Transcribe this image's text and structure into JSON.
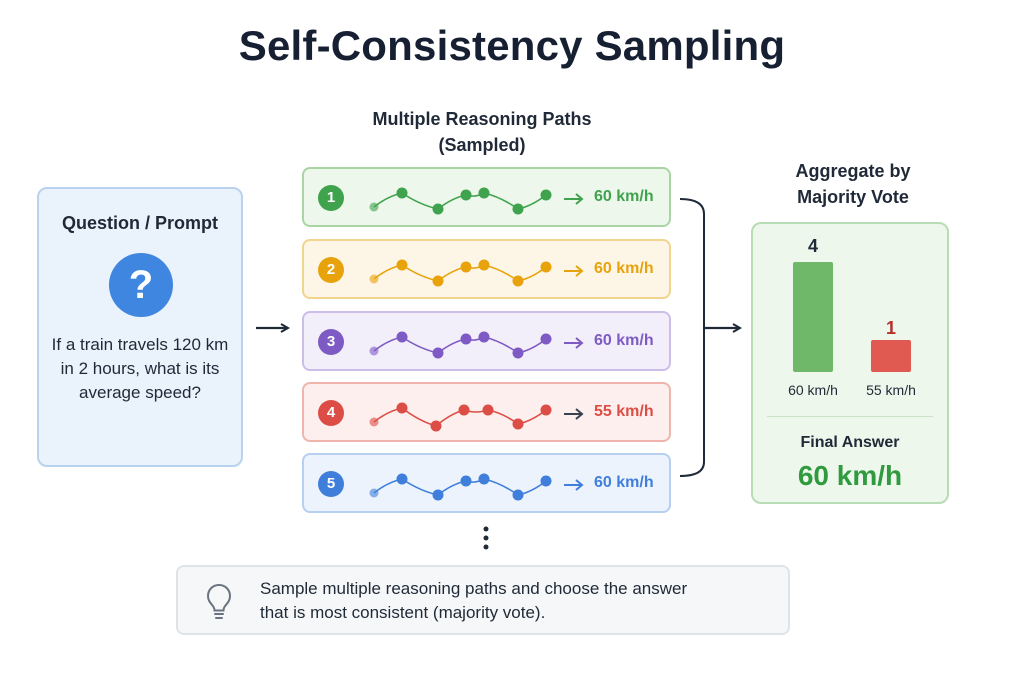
{
  "title": "Self-Consistency Sampling",
  "question": {
    "heading": "Question / Prompt",
    "icon": "question-icon",
    "icon_glyph": "?",
    "text": "If a train travels 120 km in 2 hours, what is its average speed?"
  },
  "paths_heading": [
    "Multiple Reasoning Paths",
    "(Sampled)"
  ],
  "paths": [
    {
      "number": "1",
      "answer": "60 km/h",
      "color": "#3fa34d",
      "bg": "#eef7ec",
      "border": "#a9d5a3"
    },
    {
      "number": "2",
      "answer": "60 km/h",
      "color": "#e8a30c",
      "bg": "#fdf6e7",
      "border": "#f1d48e"
    },
    {
      "number": "3",
      "answer": "60 km/h",
      "color": "#7e5bc4",
      "bg": "#f3effa",
      "border": "#cdbde9"
    },
    {
      "number": "4",
      "answer": "55 km/h",
      "color": "#dc4e45",
      "bg": "#fcefed",
      "border": "#efb5ad"
    },
    {
      "number": "5",
      "answer": "60 km/h",
      "color": "#3f7fdb",
      "bg": "#edf3fc",
      "border": "#b7cff0"
    }
  ],
  "aggregate": {
    "heading": [
      "Aggregate by",
      "Majority Vote"
    ],
    "votes": [
      {
        "label": "60 km/h",
        "count": 4,
        "count_text": "4",
        "color": "#6fb86a",
        "count_color": "#1f2937"
      },
      {
        "label": "55 km/h",
        "count": 1,
        "count_text": "1",
        "color": "#e15a52",
        "count_color": "#b3302b"
      }
    ],
    "final_label": "Final Answer",
    "final_value": "60 km/h"
  },
  "tip": {
    "icon": "lightbulb-icon",
    "text_line1": "Sample multiple reasoning paths and choose the answer",
    "text_line2": "that is most consistent (majority vote)."
  },
  "colors": {
    "accent": "#3f86e0",
    "dark": "#172033"
  }
}
